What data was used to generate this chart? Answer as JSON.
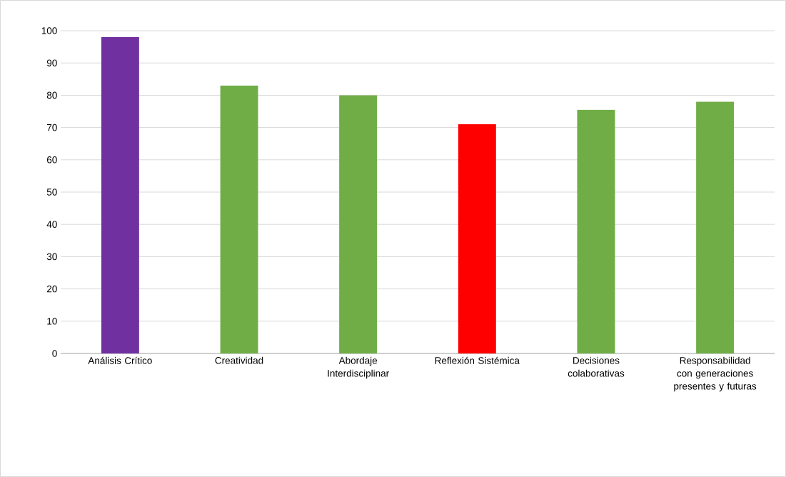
{
  "chart_data": {
    "type": "bar",
    "categories": [
      "Análisis Crítico",
      "Creatividad",
      "Abordaje Interdisciplinar",
      "Reflexión Sistémica",
      "Decisiones colaborativas",
      "Responsabilidad con generaciones presentes y futuras"
    ],
    "values": [
      98,
      83,
      80,
      71,
      75.5,
      78
    ],
    "colors": [
      "#7030a0",
      "#70ad47",
      "#70ad47",
      "#ff0000",
      "#70ad47",
      "#70ad47"
    ],
    "ylim": [
      0,
      100
    ],
    "yticks": [
      0,
      10,
      20,
      30,
      40,
      50,
      60,
      70,
      80,
      90,
      100
    ],
    "grid": "y"
  }
}
